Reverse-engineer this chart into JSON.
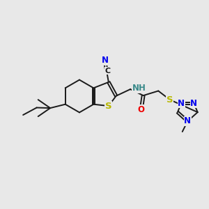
{
  "bg_color": "#e8e8e8",
  "bond_color": "#1a1a1a",
  "bond_width": 1.4,
  "atom_colors": {
    "N": "#0000ee",
    "S": "#b8b800",
    "O": "#ee0000",
    "H": "#3a8a8a",
    "C": "#1a1a1a"
  },
  "font_size": 8.5
}
